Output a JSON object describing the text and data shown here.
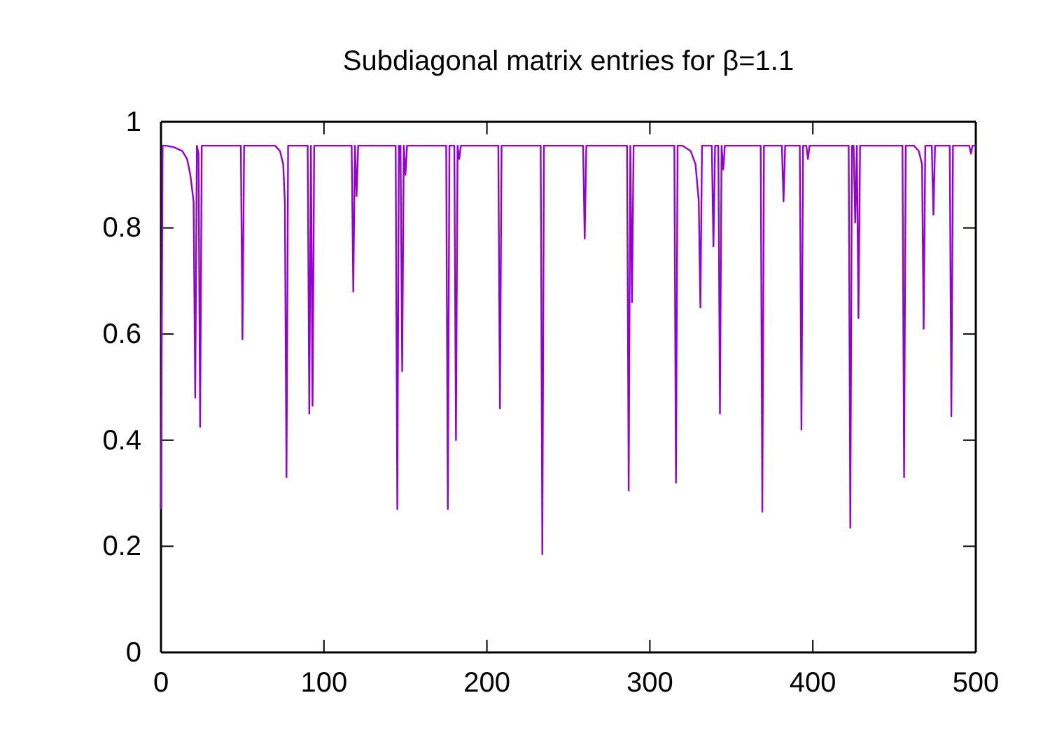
{
  "chart_data": {
    "type": "line",
    "title": "Subdiagonal matrix entries for β=1.1",
    "x": [
      0,
      1,
      3,
      8,
      13,
      16,
      18,
      20,
      21,
      22,
      23,
      24,
      25,
      26,
      49,
      50,
      51,
      70,
      73,
      75,
      76,
      77,
      78,
      90,
      91,
      92,
      93,
      94,
      117,
      118,
      119,
      120,
      121,
      144,
      145,
      146,
      147,
      148,
      149,
      150,
      151,
      175,
      176,
      177,
      180,
      181,
      182,
      183,
      184,
      207,
      208,
      209,
      233,
      234,
      235,
      259,
      260,
      261,
      286,
      287,
      288,
      289,
      290,
      315,
      316,
      317,
      320,
      325,
      328,
      330,
      331,
      332,
      338,
      339,
      340,
      342,
      343,
      344,
      345,
      346,
      368,
      369,
      370,
      381,
      382,
      383,
      392,
      393,
      394,
      396,
      397,
      398,
      422,
      423,
      424,
      425,
      426,
      427,
      428,
      429,
      455,
      456,
      457,
      462,
      465,
      467,
      468,
      469,
      473,
      474,
      475,
      484,
      485,
      486,
      496,
      497,
      498,
      500
    ],
    "series": [
      {
        "color": "#9400d3",
        "values": [
          0.27,
          0.955,
          0.955,
          0.952,
          0.945,
          0.93,
          0.9,
          0.85,
          0.48,
          0.955,
          0.94,
          0.425,
          0.955,
          0.955,
          0.955,
          0.59,
          0.955,
          0.955,
          0.945,
          0.92,
          0.85,
          0.33,
          0.955,
          0.955,
          0.45,
          0.955,
          0.465,
          0.955,
          0.955,
          0.68,
          0.955,
          0.86,
          0.955,
          0.955,
          0.27,
          0.955,
          0.955,
          0.53,
          0.955,
          0.9,
          0.955,
          0.955,
          0.27,
          0.955,
          0.955,
          0.4,
          0.955,
          0.93,
          0.955,
          0.955,
          0.46,
          0.955,
          0.955,
          0.185,
          0.955,
          0.955,
          0.78,
          0.955,
          0.955,
          0.305,
          0.955,
          0.66,
          0.955,
          0.955,
          0.32,
          0.955,
          0.955,
          0.945,
          0.92,
          0.85,
          0.65,
          0.955,
          0.955,
          0.765,
          0.955,
          0.955,
          0.45,
          0.955,
          0.91,
          0.955,
          0.955,
          0.265,
          0.955,
          0.955,
          0.85,
          0.955,
          0.955,
          0.42,
          0.955,
          0.955,
          0.93,
          0.955,
          0.955,
          0.235,
          0.955,
          0.955,
          0.81,
          0.955,
          0.63,
          0.955,
          0.955,
          0.33,
          0.955,
          0.955,
          0.945,
          0.92,
          0.61,
          0.955,
          0.955,
          0.825,
          0.955,
          0.955,
          0.445,
          0.955,
          0.955,
          0.94,
          0.955,
          0.955
        ]
      }
    ],
    "xlim": [
      0,
      500
    ],
    "xticks": [
      0,
      100,
      200,
      300,
      400,
      500
    ],
    "ylim": [
      0,
      1
    ],
    "yticks": [
      0,
      0.2,
      0.4,
      0.6,
      0.8,
      1
    ],
    "grid": false,
    "line_style": "solid",
    "marker": "none"
  }
}
